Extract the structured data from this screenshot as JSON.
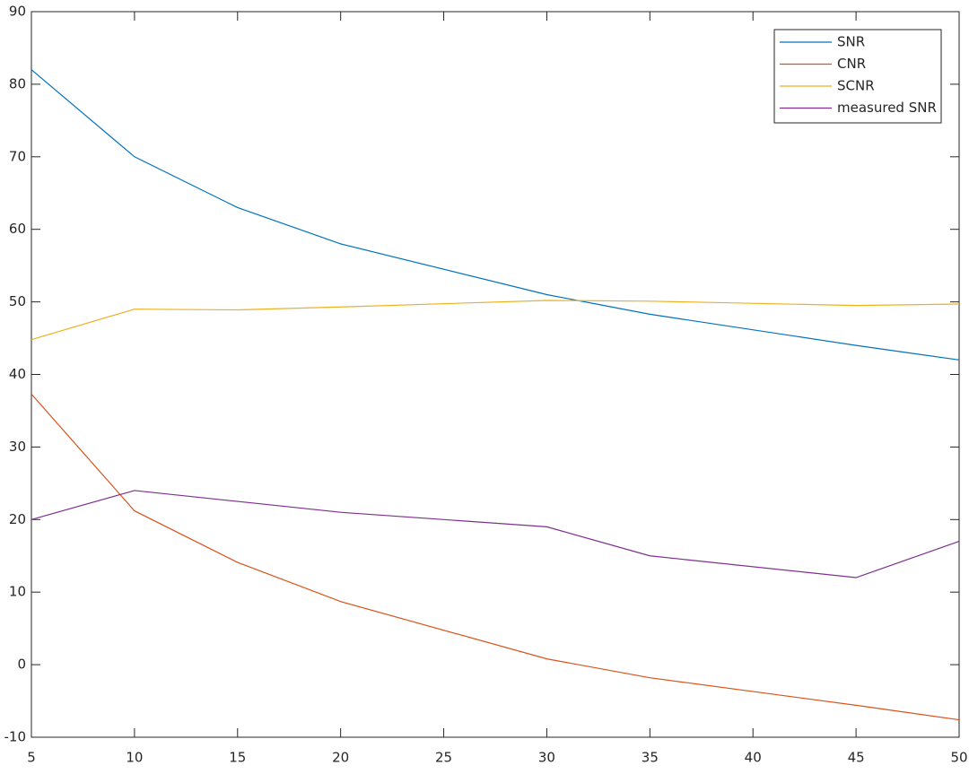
{
  "chart_data": {
    "type": "line",
    "x": [
      5,
      10,
      15,
      20,
      30,
      35,
      45,
      50
    ],
    "series": [
      {
        "name": "SNR",
        "color": "#0072BD",
        "values": [
          82,
          70,
          63,
          58,
          51,
          48.3,
          44,
          42
        ]
      },
      {
        "name": "CNR",
        "color": "#D95319",
        "values": [
          37.3,
          21.2,
          14.1,
          8.7,
          0.8,
          -1.8,
          -5.6,
          -7.6
        ]
      },
      {
        "name": "SCNR",
        "color": "#EDB120",
        "values": [
          44.8,
          49,
          48.9,
          49.3,
          50.2,
          50.1,
          49.5,
          49.7
        ]
      },
      {
        "name": "measured SNR",
        "color": "#7E2F8E",
        "values": [
          20,
          24,
          22.5,
          21,
          19,
          15,
          12,
          17
        ]
      }
    ],
    "xlim": [
      5,
      50
    ],
    "xticks": [
      5,
      10,
      15,
      20,
      25,
      30,
      35,
      40,
      45,
      50
    ],
    "ylim": [
      -10,
      90
    ],
    "yticks": [
      -10,
      0,
      10,
      20,
      30,
      40,
      50,
      60,
      70,
      80,
      90
    ],
    "grid": false,
    "legend": "upper right"
  }
}
